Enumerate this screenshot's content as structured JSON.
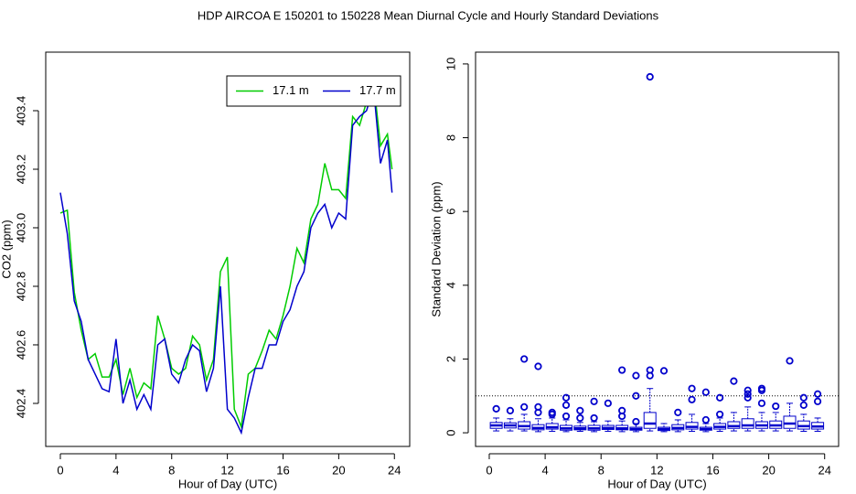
{
  "title": "HDP   AIRCOA E   150201 to 150228   Mean Diurnal Cycle and Hourly Standard Deviations",
  "chart_data": [
    {
      "type": "line",
      "xlabel": "Hour of Day (UTC)",
      "ylabel": "CO2 (ppm)",
      "xlim": [
        -1.05,
        25.1
      ],
      "ylim": [
        402.253,
        403.6
      ],
      "xticks": [
        0,
        4,
        8,
        12,
        16,
        20,
        24
      ],
      "yticks": [
        402.4,
        402.6,
        402.8,
        {
          "value": 403.0,
          "label": "403.0"
        },
        403.2,
        403.4
      ],
      "legend": "topright",
      "x": [
        0,
        0.5,
        1,
        1.5,
        2,
        2.5,
        3,
        3.5,
        4,
        4.5,
        5,
        5.5,
        6,
        6.5,
        7,
        7.5,
        8,
        8.5,
        9,
        9.5,
        10,
        10.5,
        11,
        11.5,
        12,
        12.5,
        13,
        13.5,
        14,
        14.5,
        15,
        15.5,
        16,
        16.5,
        17,
        17.5,
        18,
        18.5,
        19,
        19.5,
        20,
        20.5,
        21,
        21.5,
        22,
        22.5,
        23,
        23.5,
        23.83
      ],
      "series": [
        {
          "name": "17.1 m",
          "color": "#00cc00",
          "values": [
            403.05,
            403.06,
            402.78,
            402.65,
            402.55,
            402.57,
            402.49,
            402.49,
            402.55,
            402.43,
            402.52,
            402.42,
            402.47,
            402.45,
            402.7,
            402.62,
            402.52,
            402.5,
            402.52,
            402.63,
            402.6,
            402.48,
            402.55,
            402.85,
            402.9,
            402.38,
            402.32,
            402.5,
            402.52,
            402.58,
            402.65,
            402.62,
            402.7,
            402.8,
            402.93,
            402.88,
            403.03,
            403.08,
            403.22,
            403.13,
            403.13,
            403.1,
            403.38,
            403.35,
            403.43,
            403.5,
            403.28,
            403.32,
            403.2
          ]
        },
        {
          "name": "17.7 m",
          "color": "#0000cc",
          "values": [
            403.12,
            402.98,
            402.75,
            402.68,
            402.55,
            402.5,
            402.45,
            402.44,
            402.62,
            402.4,
            402.48,
            402.38,
            402.43,
            402.38,
            402.6,
            402.62,
            402.5,
            402.47,
            402.55,
            402.6,
            402.58,
            402.44,
            402.52,
            402.8,
            402.38,
            402.35,
            402.3,
            402.42,
            402.52,
            402.52,
            402.6,
            402.6,
            402.68,
            402.72,
            402.8,
            402.85,
            403.0,
            403.05,
            403.08,
            403.0,
            403.05,
            403.03,
            403.35,
            403.38,
            403.4,
            403.48,
            403.22,
            403.3,
            403.12
          ]
        }
      ]
    },
    {
      "type": "box",
      "xlabel": "Hour of Day (UTC)",
      "ylabel": "Standard Deviation (ppm)",
      "xlim": [
        -0.98,
        25.0
      ],
      "ylim": [
        -0.37,
        10.32
      ],
      "xticks": [
        0,
        4,
        8,
        12,
        16,
        20,
        24
      ],
      "yticks": [
        0,
        2,
        4,
        6,
        8,
        10
      ],
      "hline": 1,
      "color": "#0000cc",
      "x": [
        0.5,
        1.5,
        2.5,
        3.5,
        4.5,
        5.5,
        6.5,
        7.5,
        8.5,
        9.5,
        10.5,
        11.5,
        12.5,
        13.5,
        14.5,
        15.5,
        16.5,
        17.5,
        18.5,
        19.5,
        20.5,
        21.5,
        22.5,
        23.5
      ],
      "boxes": [
        {
          "whislo": 0.05,
          "q1": 0.12,
          "med": 0.2,
          "q3": 0.28,
          "whishi": 0.4,
          "fliers": [
            0.65
          ]
        },
        {
          "whislo": 0.05,
          "q1": 0.13,
          "med": 0.2,
          "q3": 0.27,
          "whishi": 0.38,
          "fliers": [
            0.6
          ]
        },
        {
          "whislo": 0.05,
          "q1": 0.1,
          "med": 0.18,
          "q3": 0.3,
          "whishi": 0.5,
          "fliers": [
            2.0,
            0.7
          ]
        },
        {
          "whislo": 0.03,
          "q1": 0.08,
          "med": 0.13,
          "q3": 0.22,
          "whishi": 0.38,
          "fliers": [
            1.8,
            0.7,
            0.55
          ]
        },
        {
          "whislo": 0.04,
          "q1": 0.1,
          "med": 0.15,
          "q3": 0.25,
          "whishi": 0.4,
          "fliers": [
            0.55,
            0.5
          ]
        },
        {
          "whislo": 0.03,
          "q1": 0.07,
          "med": 0.12,
          "q3": 0.2,
          "whishi": 0.35,
          "fliers": [
            0.95,
            0.75,
            0.45
          ]
        },
        {
          "whislo": 0.04,
          "q1": 0.08,
          "med": 0.12,
          "q3": 0.18,
          "whishi": 0.28,
          "fliers": [
            0.6,
            0.4
          ]
        },
        {
          "whislo": 0.03,
          "q1": 0.07,
          "med": 0.12,
          "q3": 0.2,
          "whishi": 0.3,
          "fliers": [
            0.85,
            0.4
          ]
        },
        {
          "whislo": 0.04,
          "q1": 0.09,
          "med": 0.13,
          "q3": 0.2,
          "whishi": 0.32,
          "fliers": [
            0.8
          ]
        },
        {
          "whislo": 0.03,
          "q1": 0.08,
          "med": 0.12,
          "q3": 0.2,
          "whishi": 0.32,
          "fliers": [
            1.7,
            0.6,
            0.45
          ]
        },
        {
          "whislo": 0.03,
          "q1": 0.07,
          "med": 0.1,
          "q3": 0.15,
          "whishi": 0.25,
          "fliers": [
            1.55,
            1.0,
            0.3
          ]
        },
        {
          "whislo": 0.05,
          "q1": 0.12,
          "med": 0.25,
          "q3": 0.55,
          "whishi": 1.2,
          "fliers": [
            9.65,
            1.7,
            1.55
          ]
        },
        {
          "whislo": 0.03,
          "q1": 0.06,
          "med": 0.1,
          "q3": 0.15,
          "whishi": 0.25,
          "fliers": [
            1.68
          ]
        },
        {
          "whislo": 0.03,
          "q1": 0.08,
          "med": 0.13,
          "q3": 0.22,
          "whishi": 0.35,
          "fliers": [
            0.55
          ]
        },
        {
          "whislo": 0.04,
          "q1": 0.1,
          "med": 0.16,
          "q3": 0.28,
          "whishi": 0.5,
          "fliers": [
            1.2,
            0.9
          ]
        },
        {
          "whislo": 0.03,
          "q1": 0.07,
          "med": 0.1,
          "q3": 0.15,
          "whishi": 0.25,
          "fliers": [
            1.1,
            0.35
          ]
        },
        {
          "whislo": 0.04,
          "q1": 0.1,
          "med": 0.16,
          "q3": 0.25,
          "whishi": 0.4,
          "fliers": [
            0.95,
            0.5
          ]
        },
        {
          "whislo": 0.05,
          "q1": 0.12,
          "med": 0.18,
          "q3": 0.3,
          "whishi": 0.55,
          "fliers": [
            1.4
          ]
        },
        {
          "whislo": 0.05,
          "q1": 0.12,
          "med": 0.2,
          "q3": 0.38,
          "whishi": 0.7,
          "fliers": [
            1.15,
            1.05,
            0.95
          ]
        },
        {
          "whislo": 0.05,
          "q1": 0.12,
          "med": 0.2,
          "q3": 0.3,
          "whishi": 0.55,
          "fliers": [
            1.2,
            1.15,
            0.8
          ]
        },
        {
          "whislo": 0.05,
          "q1": 0.12,
          "med": 0.2,
          "q3": 0.32,
          "whishi": 0.55,
          "fliers": [
            0.72
          ]
        },
        {
          "whislo": 0.05,
          "q1": 0.12,
          "med": 0.25,
          "q3": 0.45,
          "whishi": 0.8,
          "fliers": [
            1.95
          ]
        },
        {
          "whislo": 0.04,
          "q1": 0.1,
          "med": 0.18,
          "q3": 0.32,
          "whishi": 0.5,
          "fliers": [
            0.95,
            0.75
          ]
        },
        {
          "whislo": 0.04,
          "q1": 0.1,
          "med": 0.17,
          "q3": 0.28,
          "whishi": 0.4,
          "fliers": [
            1.05,
            0.85
          ]
        }
      ]
    }
  ]
}
